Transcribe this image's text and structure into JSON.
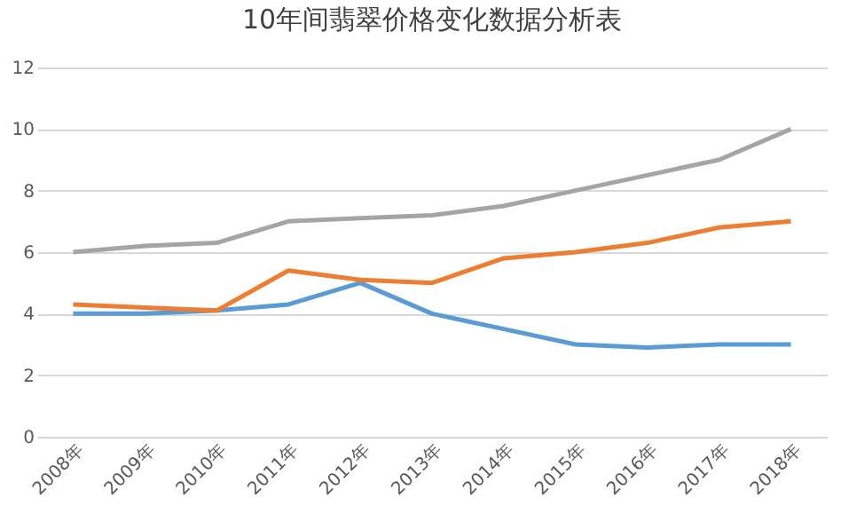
{
  "chart_data": {
    "type": "line",
    "title": "10年间翡翠价格变化数据分析表",
    "categories": [
      "2008年",
      "2009年",
      "2010年",
      "2011年",
      "2012年",
      "2013年",
      "2014年",
      "2015年",
      "2016年",
      "2017年",
      "2018年"
    ],
    "series": [
      {
        "color": "#5b9bd5",
        "values": [
          4.0,
          4.0,
          4.1,
          4.3,
          5.0,
          4.0,
          3.5,
          3.0,
          2.9,
          3.0,
          3.0
        ]
      },
      {
        "color": "#ed7d31",
        "values": [
          4.3,
          4.2,
          4.1,
          5.4,
          5.1,
          5.0,
          5.8,
          6.0,
          6.3,
          6.8,
          7.0
        ]
      },
      {
        "color": "#a5a5a5",
        "values": [
          6.0,
          6.2,
          6.3,
          7.0,
          7.1,
          7.2,
          7.5,
          8.0,
          8.5,
          9.0,
          10.0
        ]
      }
    ],
    "ylim": [
      0,
      12
    ],
    "yticks": [
      0,
      2,
      4,
      6,
      8,
      10,
      12
    ],
    "grid": "y",
    "legend": false
  }
}
